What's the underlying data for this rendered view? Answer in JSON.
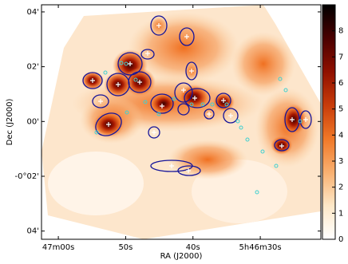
{
  "chart_data": {
    "type": "image",
    "xlabel": "RA (J2000)",
    "ylabel": "Dec (J2000)",
    "xlim": [
      62.5,
      21
    ],
    "ylim": [
      -4.3,
      4.26
    ],
    "xticks": [
      {
        "value": 60,
        "label": "47m00s"
      },
      {
        "value": 50,
        "label": "50s"
      },
      {
        "value": 40,
        "label": "40s"
      },
      {
        "value": 30,
        "label": "5h46m30s"
      }
    ],
    "yticks": [
      {
        "value": 4,
        "label": "04'"
      },
      {
        "value": 2,
        "label": "02'"
      },
      {
        "value": 0,
        "label": "00'"
      },
      {
        "value": -2,
        "label": "-0°02'"
      },
      {
        "value": -4,
        "label": "04'"
      }
    ],
    "colorbar": {
      "lim": [
        0,
        9
      ],
      "ticks": [
        0,
        1,
        2,
        3,
        4,
        5,
        6,
        7,
        8
      ]
    },
    "colormap": [
      "#ffffff",
      "#fde8c8",
      "#f9b070",
      "#f07828",
      "#c83c0a",
      "#901000",
      "#4a0000",
      "#000000"
    ]
  }
}
